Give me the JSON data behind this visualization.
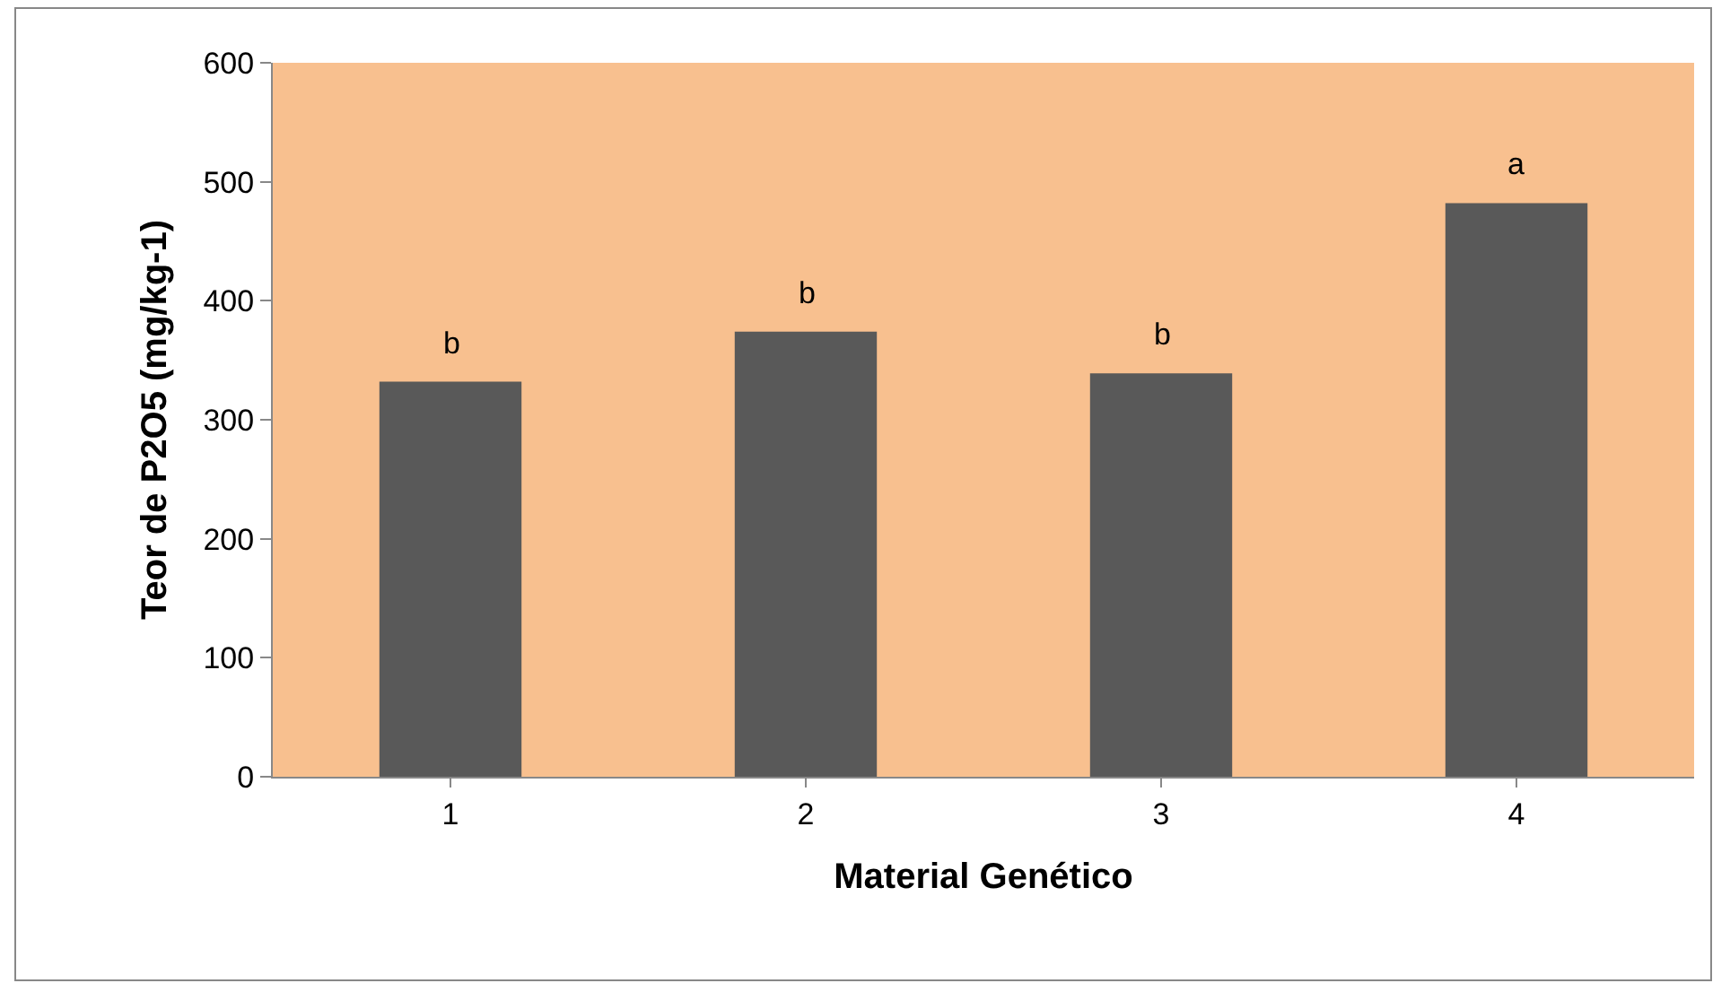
{
  "chart_data": {
    "type": "bar",
    "xlabel": "Material Genético",
    "ylabel": "Teor de P2O5 (mg/kg-1)",
    "categories": [
      "1",
      "2",
      "3",
      "4"
    ],
    "values": [
      332,
      374,
      339,
      482
    ],
    "color": "#595959",
    "ylim": [
      0,
      600
    ],
    "yticks": [
      0,
      100,
      200,
      300,
      400,
      500,
      600
    ],
    "grid": false,
    "legend": false,
    "annotations": [
      {
        "text": "b",
        "x": "1",
        "y": 332
      },
      {
        "text": "b",
        "x": "2",
        "y": 374
      },
      {
        "text": "b",
        "x": "3",
        "y": 339
      },
      {
        "text": "a",
        "x": "4",
        "y": 482
      }
    ]
  }
}
